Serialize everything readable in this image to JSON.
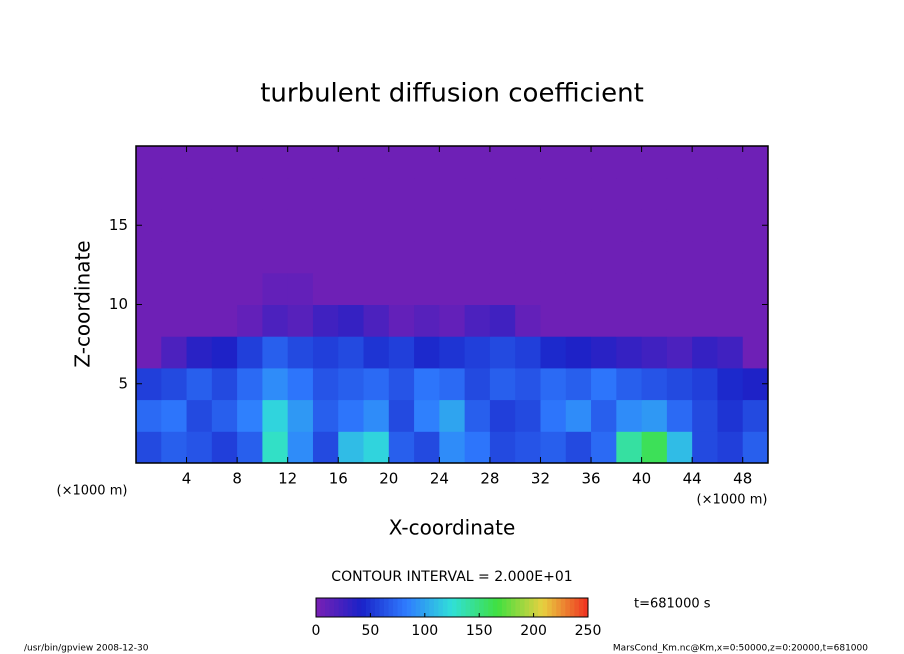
{
  "chart_data": {
    "type": "heatmap",
    "title": "turbulent diffusion coefficient",
    "xlabel": "X-coordinate",
    "ylabel": "Z-coordinate",
    "x_unit": "(×1000 m)",
    "y_unit": "(×1000 m)",
    "xlim": [
      0,
      50
    ],
    "ylim": [
      0,
      20
    ],
    "xticks": [
      4,
      8,
      12,
      16,
      20,
      24,
      28,
      32,
      36,
      40,
      44,
      48
    ],
    "yticks": [
      5,
      10,
      15
    ],
    "x_edges": [
      0,
      2,
      4,
      6,
      8,
      10,
      12,
      14,
      16,
      18,
      20,
      22,
      24,
      26,
      28,
      30,
      32,
      34,
      36,
      38,
      40,
      42,
      44,
      46,
      48,
      50
    ],
    "z_edges": [
      0,
      2,
      4,
      6,
      8,
      10,
      12,
      14,
      16,
      18,
      20
    ],
    "z_values": [
      [
        60,
        70,
        65,
        55,
        70,
        130,
        90,
        60,
        110,
        120,
        70,
        60,
        90,
        80,
        60,
        65,
        70,
        60,
        75,
        140,
        160,
        110,
        60,
        55,
        70
      ],
      [
        75,
        80,
        60,
        70,
        85,
        120,
        95,
        70,
        80,
        90,
        60,
        85,
        100,
        70,
        55,
        60,
        80,
        90,
        70,
        90,
        95,
        75,
        60,
        50,
        60
      ],
      [
        55,
        60,
        70,
        60,
        75,
        90,
        80,
        65,
        70,
        75,
        65,
        80,
        75,
        60,
        70,
        65,
        75,
        70,
        80,
        70,
        65,
        60,
        55,
        45,
        40
      ],
      [
        5,
        20,
        35,
        40,
        55,
        70,
        60,
        55,
        60,
        50,
        55,
        45,
        50,
        55,
        60,
        55,
        45,
        40,
        35,
        30,
        25,
        20,
        30,
        25,
        5
      ],
      [
        5,
        5,
        5,
        5,
        10,
        20,
        15,
        25,
        30,
        20,
        10,
        15,
        10,
        20,
        25,
        10,
        5,
        5,
        5,
        5,
        5,
        5,
        5,
        5,
        5
      ],
      [
        5,
        5,
        5,
        5,
        5,
        10,
        10,
        5,
        5,
        5,
        5,
        5,
        5,
        5,
        5,
        5,
        5,
        5,
        5,
        5,
        5,
        5,
        5,
        5,
        5
      ],
      [
        5,
        5,
        5,
        5,
        5,
        5,
        5,
        5,
        5,
        5,
        5,
        5,
        5,
        5,
        5,
        5,
        5,
        5,
        5,
        5,
        5,
        5,
        5,
        5,
        5
      ],
      [
        5,
        5,
        5,
        5,
        5,
        5,
        5,
        5,
        5,
        5,
        5,
        5,
        5,
        5,
        5,
        5,
        5,
        5,
        5,
        5,
        5,
        5,
        5,
        5,
        5
      ],
      [
        5,
        5,
        5,
        5,
        5,
        5,
        5,
        5,
        5,
        5,
        5,
        5,
        5,
        5,
        5,
        5,
        5,
        5,
        5,
        5,
        5,
        5,
        5,
        5,
        5
      ],
      [
        5,
        5,
        5,
        5,
        5,
        5,
        5,
        5,
        5,
        5,
        5,
        5,
        5,
        5,
        5,
        5,
        5,
        5,
        5,
        5,
        5,
        5,
        5,
        5,
        5
      ]
    ],
    "colorbar": {
      "lim": [
        0,
        250
      ],
      "ticks": [
        0,
        50,
        100,
        150,
        200,
        250
      ],
      "colors": [
        "#7a20b4",
        "#1a22c8",
        "#2f7cff",
        "#30e0d8",
        "#40e040",
        "#e8d040",
        "#f03020"
      ]
    },
    "contour_note": "CONTOUR INTERVAL = 2.000E+01",
    "time_note": "t=681000 s",
    "footer_left": "/usr/bin/gpview   2008-12-30",
    "footer_right": "MarsCond_Km.nc@Km,x=0:50000,z=0:20000,t=681000"
  }
}
